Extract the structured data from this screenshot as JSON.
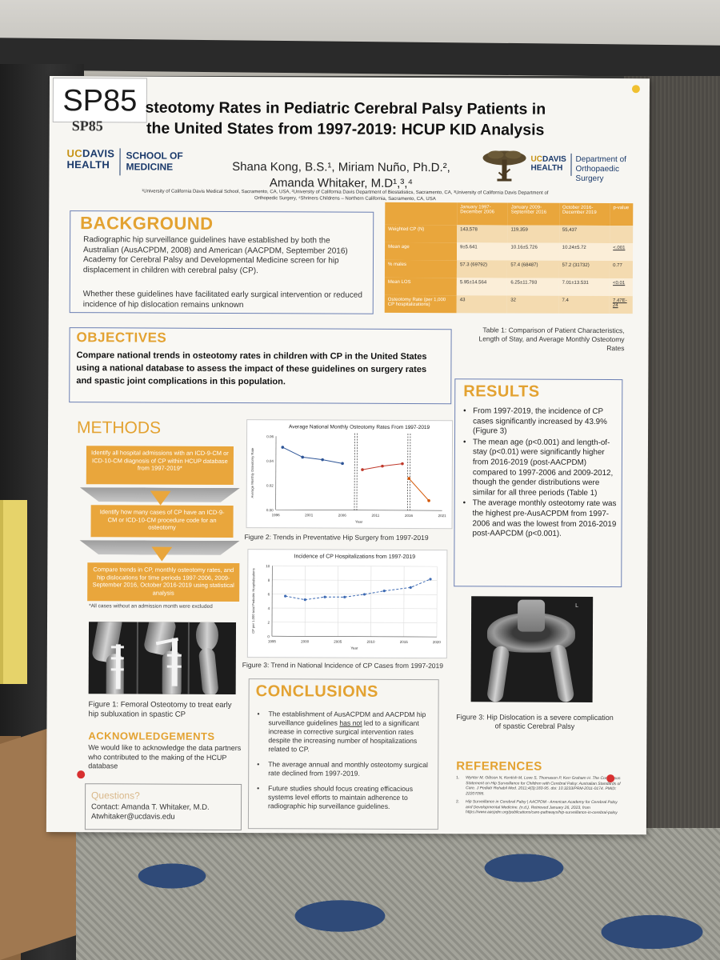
{
  "poster": {
    "label_handwritten": "SP85",
    "label_printed": "SP85",
    "title": "Osteotomy Rates in Pediatric Cerebral Palsy Patients in the United States from 1997-2019: HCUP KID Analysis",
    "title_visible": "steotomy Rates in Pediatric Cerebral Palsy Patients in the United States from 1997-2019: HCUP KID Analysis",
    "authors_line1": "Shana Kong, B.S.¹, Miriam Nuño, Ph.D.²,",
    "authors_line2": "Amanda Whitaker, M.D¹,³,⁴",
    "affiliations": "¹University of California Davis Medical School, Sacramento, CA, USA, ²University of California Davis Department of Biostatistics, Sacramento, CA, ³University of California Davis Department of Orthopedic Surgery, ⁴Shriners Childrens – Northern California, Sacramento, CA, USA"
  },
  "logo_left": {
    "uc": "UC",
    "davis": "DAVIS",
    "health": "HEALTH",
    "school_line1": "SCHOOL OF",
    "school_line2": "MEDICINE"
  },
  "logo_right": {
    "uc": "UC",
    "davis": "DAVIS",
    "health": "HEALTH",
    "dept_line1": "Department of",
    "dept_line2": "Orthopaedic Surgery"
  },
  "background": {
    "heading": "BACKGROUND",
    "para1": "Radiographic hip surveillance guidelines have established by both the Australian (AusACPDM, 2008) and American (AACPDM, September 2016) Academy for Cerebral Palsy and Developmental Medicine screen for hip displacement in children with cerebral palsy (CP).",
    "para2": "Whether these guidelines have facilitated early surgical intervention or reduced incidence of hip dislocation remains unknown"
  },
  "table": {
    "headers": [
      "",
      "January 1997-December 2006",
      "January 2009-September 2016",
      "October 2016-December 2019",
      "p-value"
    ],
    "rows": [
      [
        "Weighted CP (N)",
        "143,578",
        "119,359",
        "55,437",
        ""
      ],
      [
        "Mean age",
        "9±5.641",
        "10.16±5.726",
        "10.24±5.72",
        "<.001"
      ],
      [
        "% males",
        "57.3 (69792)",
        "57.4 (68487)",
        "57.2 (31732)",
        "0.77"
      ],
      [
        "Mean LOS",
        "5.95±14.564",
        "6.25±11.793",
        "7.01±13.531",
        "<0.01"
      ],
      [
        "Osteotomy Rate (per 1,000 CP hospitalizations)",
        "43",
        "32",
        "7.4",
        "7.47E-24"
      ]
    ],
    "caption": "Table 1: Comparison of Patient Characteristics, Length of Stay, and Average Monthly Osteotomy Rates"
  },
  "objectives": {
    "heading": "OBJECTIVES",
    "text": "Compare national trends in osteotomy rates in children with CP in the United States using a national database to assess the impact of these guidelines on surgery rates and spastic joint complications in this population."
  },
  "methods": {
    "heading": "METHODS",
    "step1": "Identify all hospital admissions with an ICD-9-CM or ICD-10-CM diagnosis of CP within HCUP database from 1997-2019*",
    "step2": "Identify how many cases of CP have an ICD-9-CM or ICD-10-CM procedure code for an osteotomy",
    "step3": "Compare trends in CP, monthly osteotomy rates, and hip dislocations for time periods 1997-2006, 2009-September 2016, October 2016-2019 using statistical analysis",
    "footnote": "*All cases without an admission month were excluded"
  },
  "figure1": {
    "caption": "Figure 1: Femoral Osteotomy to treat early hip subluxation in spastic CP"
  },
  "acknowledgements": {
    "heading": "ACKNOWLEDGEMENTS",
    "text": "We would like to acknowledge the data partners who contributed to the making of the HCUP database"
  },
  "questions": {
    "heading": "Questions?",
    "contact": "Contact: Amanda T. Whitaker, M.D.",
    "email": "Atwhitaker@ucdavis.edu"
  },
  "figure2": {
    "caption": "Figure 2: Trends in Preventative Hip Surgery from 1997-2019"
  },
  "figure3_chart": {
    "caption": "Figure 3: Trend in National Incidence of CP Cases from 1997-2019"
  },
  "results": {
    "heading": "RESULTS",
    "items": [
      "From 1997-2019, the incidence of CP cases significantly increased by 43.9% (Figure 3)",
      "The mean age (p<0.001) and length-of-stay (p<0.01) were significantly higher from 2016-2019 (post-AACPDM) compared to 1997-2006 and 2009-2012, though the gender distributions were similar for all three periods (Table 1)",
      "The average monthly osteotomy rate was the highest pre-AusACPDM from 1997-2006 and was the lowest from 2016-2019 post-AAPCDM (p<0.001)."
    ]
  },
  "figure3_xray": {
    "caption": "Figure 3: Hip Dislocation is a severe complication of spastic Cerebral Palsy",
    "marker": "L"
  },
  "conclusions": {
    "heading": "CONCLUSIONS",
    "item1_pre": "The establishment of AusACPDM and AACPDM hip surveillance guidelines ",
    "item1_ul": "has not",
    "item1_post": " led to a significant increase in corrective surgical intervention rates despite the increasing number of hospitalizations related to CP.",
    "item2": "The average annual and monthly osteotomy surgical rate declined from 1997-2019.",
    "item3": "Future studies should focus creating efficacious systems level efforts to maintain adherence to radiographic hip surveillance guidelines."
  },
  "references": {
    "heading": "REFERENCES",
    "items": [
      {
        "n": "1.",
        "text": "Wynter M, Gibson N, Kentish M, Love S, Thomason P, Kerr Graham H. The Consensus Statement on Hip Surveillance for Children with Cerebral Palsy: Australian Standards of Care. J Pediatr Rehabil Med. 2011;4(3):183-95. doi: 10.3233/PRM-2011-0174. PMID: 22207095."
      },
      {
        "n": "2.",
        "text": "Hip Surveillance in Cerebral Palsy | AACPDM - American Academy for Cerebral Palsy and Developmental Medicine. (n.d.). Retrieved January 26, 2023, from https://www.aacpdm.org/publications/care-pathways/hip-surveillance-in-cerebral-palsy"
      }
    ]
  },
  "chart_data": [
    {
      "type": "line",
      "title": "Average National Monthly Osteotomy Rates From 1997-2019",
      "xlabel": "Year",
      "ylabel": "Average Monthly Osteotomy Rate",
      "xlim": [
        1996,
        2021
      ],
      "ylim": [
        0,
        0.06
      ],
      "x_ticks": [
        "1996",
        "2001",
        "2006",
        "2011",
        "2016",
        "2021"
      ],
      "y_ticks": [
        "0.00",
        "0.02",
        "0.04",
        "0.06"
      ],
      "series": [
        {
          "color": "#2e5597",
          "x": [
            1997,
            2000,
            2003,
            2006
          ],
          "y": [
            0.051,
            0.043,
            0.041,
            0.038
          ]
        },
        {
          "color": "#c0392b",
          "x": [
            2009,
            2012,
            2015
          ],
          "y": [
            0.033,
            0.036,
            0.038
          ]
        },
        {
          "color": "#d35400",
          "x": [
            2016,
            2019
          ],
          "y": [
            0.026,
            0.008
          ]
        }
      ],
      "vertical_markers": [
        2008,
        2016
      ]
    },
    {
      "type": "line",
      "title": "Incidence of CP Hospitalizations from 1997-2019",
      "xlabel": "Year",
      "ylabel": "CP per 1,000 total Pediatric Hospitalizations",
      "xlim": [
        1995,
        2020
      ],
      "ylim": [
        0,
        10
      ],
      "x_ticks": [
        "1995",
        "2000",
        "2005",
        "2010",
        "2015",
        "2020"
      ],
      "y_ticks": [
        "0",
        "2",
        "4",
        "6",
        "8",
        "10"
      ],
      "grid": true,
      "series": [
        {
          "color": "#3d6ab3",
          "x": [
            1997,
            2000,
            2003,
            2006,
            2009,
            2012,
            2016,
            2019
          ],
          "y": [
            5.7,
            5.2,
            5.6,
            5.6,
            6.0,
            6.5,
            7.0,
            8.2
          ]
        }
      ]
    }
  ],
  "colors": {
    "accent": "#e3a231",
    "navy": "#1b3a6b",
    "gold": "#c69214"
  }
}
